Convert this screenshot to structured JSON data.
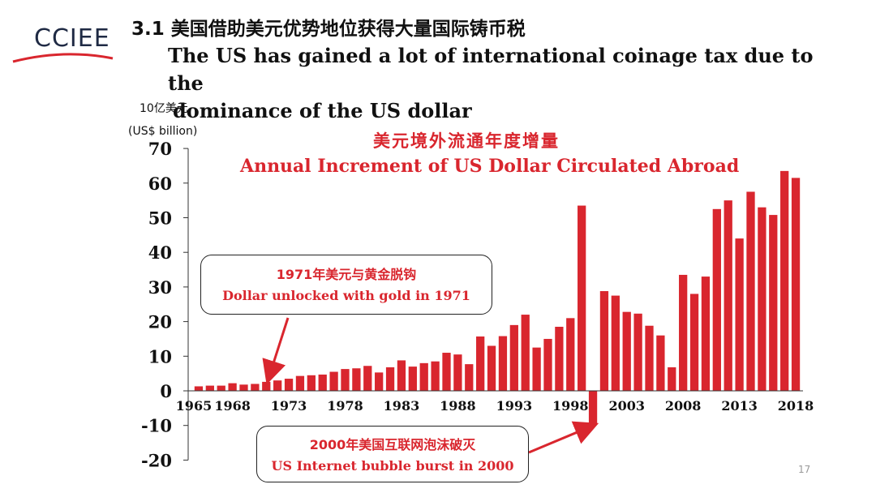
{
  "header": {
    "logo_text": "CCIEE",
    "title_cn": "3.1 美国借助美元优势地位获得大量国际铸币税",
    "title_en_line1": "The US has gained a lot of international coinage tax due to the",
    "title_en_line2": "dominance of the US dollar"
  },
  "colors": {
    "bar": "#d9262e",
    "accent": "#d9262e",
    "logo": "#1f2a44"
  },
  "callouts": {
    "c1971_cn": "1971年美元与黄金脱钩",
    "c1971_en": "Dollar unlocked with gold in 1971",
    "c2000_cn": "2000年美国互联网泡沫破灭",
    "c2000_en": "US Internet bubble burst  in 2000"
  },
  "page_number": "17",
  "chart_data": {
    "type": "bar",
    "title_cn": "美元境外流通年度增量",
    "title": "Annual Increment of US Dollar Circulated Abroad",
    "ylabel_cn": "10亿美元",
    "ylabel": "(US$ billion)",
    "ylim": [
      -20,
      70
    ],
    "yticks": [
      70,
      60,
      50,
      40,
      30,
      20,
      10,
      0,
      -10,
      -20
    ],
    "xtick_labels": [
      "1965",
      "1968",
      "1973",
      "1978",
      "1983",
      "1988",
      "1993",
      "1998",
      "2003",
      "2008",
      "2013",
      "2018"
    ],
    "x": [
      1965,
      1966,
      1967,
      1968,
      1969,
      1970,
      1971,
      1972,
      1973,
      1974,
      1975,
      1976,
      1977,
      1978,
      1979,
      1980,
      1981,
      1982,
      1983,
      1984,
      1985,
      1986,
      1987,
      1988,
      1989,
      1990,
      1991,
      1992,
      1993,
      1994,
      1995,
      1996,
      1997,
      1998,
      1999,
      2000,
      2001,
      2002,
      2003,
      2004,
      2005,
      2006,
      2007,
      2008,
      2009,
      2010,
      2011,
      2012,
      2013,
      2014,
      2015,
      2016,
      2017,
      2018
    ],
    "values": [
      1.3,
      1.5,
      1.5,
      2.2,
      1.8,
      2.0,
      2.6,
      3.0,
      3.5,
      4.3,
      4.5,
      4.7,
      5.5,
      6.3,
      6.5,
      7.2,
      5.3,
      6.8,
      8.8,
      7.0,
      8.0,
      8.5,
      11.0,
      10.5,
      7.7,
      15.7,
      13.0,
      15.8,
      19.0,
      22.0,
      12.5,
      15.0,
      18.5,
      21.0,
      53.5,
      -9.5,
      28.8,
      27.5,
      22.8,
      22.3,
      18.8,
      16.0,
      6.8,
      33.5,
      28.0,
      33.0,
      52.5,
      55.0,
      44.0,
      57.5,
      53.0,
      50.8,
      63.5,
      61.5
    ],
    "grid": false,
    "legend": "none"
  }
}
